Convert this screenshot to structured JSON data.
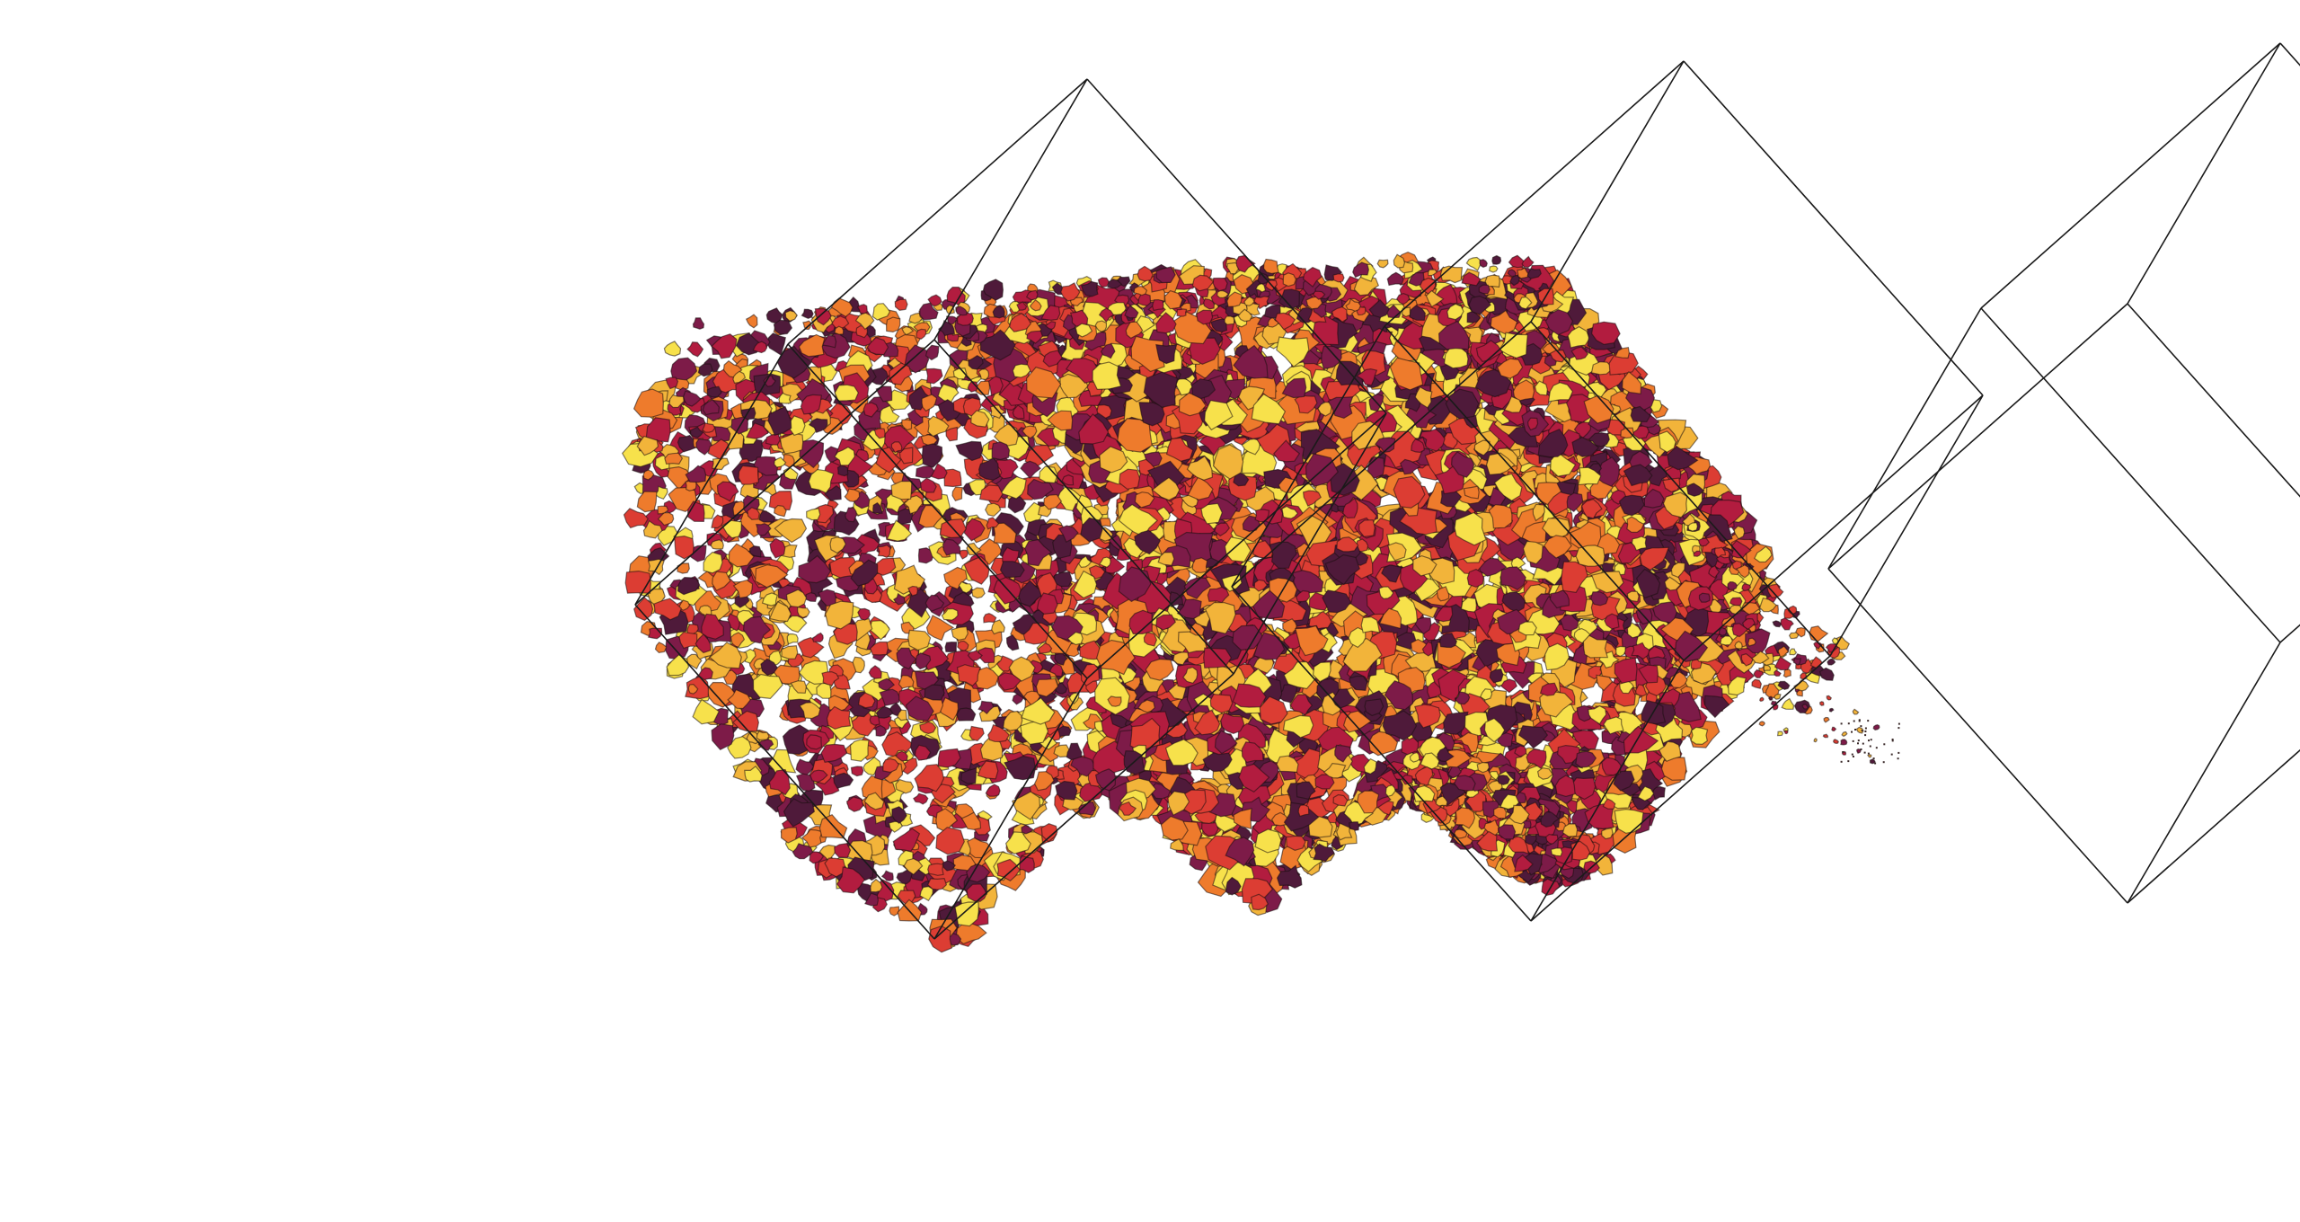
{
  "scene": {
    "background": "#ffffff",
    "wireframe_color": "#1a1a1a",
    "grain_outline_color": "#1a0f0f",
    "palette": [
      "#f7e14b",
      "#f2b43a",
      "#ee7b2c",
      "#dc3d33",
      "#b21c3f",
      "#7d1b48",
      "#4f1a3a"
    ],
    "wireframe_boxes": 4,
    "volumes": 3
  }
}
